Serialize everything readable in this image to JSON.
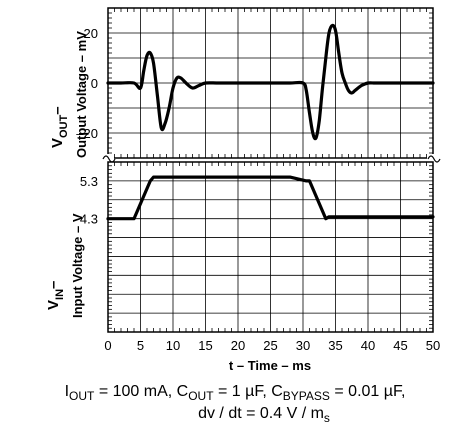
{
  "chart_data": [
    {
      "type": "line",
      "panel": "top",
      "ylabel_main": "V",
      "ylabel_sub": "OUT",
      "ylabel_dash": "–",
      "ylabel_desc": "Output Voltage – mV",
      "xlim": [
        0,
        50
      ],
      "ylim": [
        -30,
        30
      ],
      "yticks": [
        "20",
        "0",
        "–20"
      ],
      "ytick_values": [
        20,
        0,
        -20
      ],
      "grid": true,
      "series": [
        {
          "x": [
            0,
            2,
            4,
            5,
            5.5,
            6,
            6.5,
            7,
            7.6,
            8.2,
            8.8,
            9.4,
            10,
            10.6,
            11.2,
            12,
            13,
            14,
            15,
            17,
            20,
            25,
            28,
            30,
            30.5,
            31,
            31.5,
            32,
            32.5,
            33,
            33.5,
            34,
            34.5,
            35,
            35.5,
            36,
            36.5,
            37,
            37.5,
            38,
            39,
            40,
            41,
            42,
            44,
            47,
            50
          ],
          "y": [
            0,
            0,
            0,
            -2,
            5,
            11,
            12,
            8,
            -5,
            -18,
            -16,
            -10,
            -2,
            2,
            2,
            0,
            -2,
            -1,
            0,
            0,
            0,
            0,
            0,
            0,
            -3,
            -12,
            -20,
            -22,
            -15,
            -2,
            10,
            20,
            23,
            21,
            12,
            4,
            0,
            -3,
            -4,
            -3,
            -1,
            0,
            0,
            0,
            0,
            0,
            0
          ]
        }
      ]
    },
    {
      "type": "line",
      "panel": "bottom",
      "ylabel_main": "V",
      "ylabel_sub": "IN",
      "ylabel_dash": "–",
      "ylabel_desc": "Input Voltage – V",
      "xlabel": "t – Time – ms",
      "xlim": [
        0,
        50
      ],
      "ylim": [
        1.3,
        5.8
      ],
      "yticks": [
        "5.3",
        "4.3"
      ],
      "ytick_values": [
        5.3,
        4.3
      ],
      "xticks": [
        "0",
        "5",
        "10",
        "15",
        "20",
        "25",
        "30",
        "35",
        "40",
        "45",
        "50"
      ],
      "xtick_values": [
        0,
        5,
        10,
        15,
        20,
        25,
        30,
        35,
        40,
        45,
        50
      ],
      "grid": true,
      "series": [
        {
          "x": [
            0,
            3.5,
            4,
            6.5,
            7,
            28,
            30.5,
            31,
            33.5,
            34,
            50
          ],
          "y": [
            4.3,
            4.3,
            4.3,
            5.3,
            5.4,
            5.4,
            5.3,
            5.3,
            4.3,
            4.35,
            4.35
          ]
        }
      ]
    }
  ],
  "conditions": {
    "line1": {
      "iout_main": "I",
      "iout_sub": "OUT",
      "iout_val": " = 100 mA, ",
      "cout_main": "C",
      "cout_sub": "OUT",
      "cout_val": " = 1 µF, ",
      "cbyp_main": "C",
      "cbyp_sub": "BYPASS",
      "cbyp_val": " = 0.01 µF,"
    },
    "line2": {
      "dv_main": "dv / dt = 0.4 V / m",
      "dv_sub": "s"
    }
  }
}
